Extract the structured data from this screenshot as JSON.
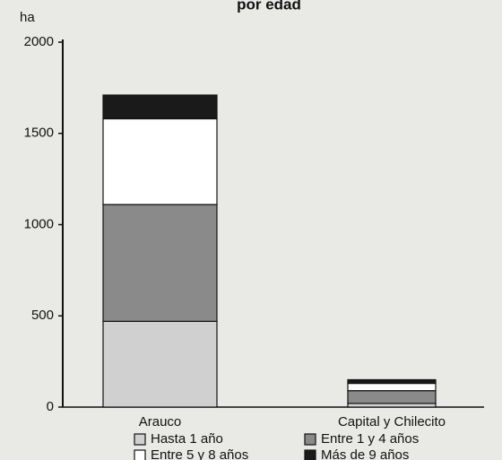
{
  "chart_data": {
    "type": "stacked_bar",
    "title": "por edad",
    "y_label": "ha",
    "categories": [
      "Arauco",
      "Capital y Chilecito"
    ],
    "series": [
      {
        "name": "Hasta 1 año",
        "color": "#d0d0d0",
        "values": [
          470,
          20
        ]
      },
      {
        "name": "Entre 1 y 4 años",
        "color": "#8a8a8a",
        "values": [
          640,
          70
        ]
      },
      {
        "name": "Entre 5 y 8 años",
        "color": "#ffffff",
        "values": [
          470,
          40
        ]
      },
      {
        "name": "Más de 9 años",
        "color": "#1a1a1a",
        "values": [
          130,
          20
        ]
      }
    ],
    "ylim": [
      0,
      2000
    ],
    "yticks": [
      0,
      500,
      1000,
      1500,
      2000
    ]
  }
}
